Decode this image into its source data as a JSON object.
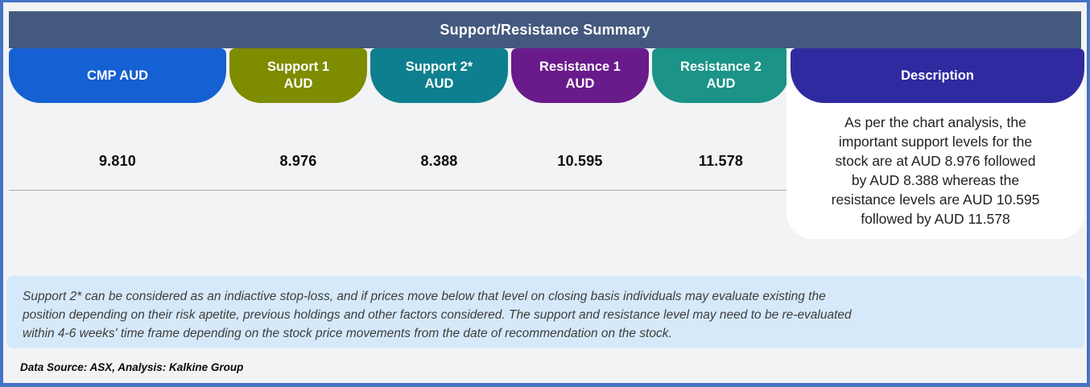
{
  "title": "Support/Resistance Summary",
  "columns": [
    {
      "label": "CMP AUD",
      "value": "9.810",
      "color": "#1560D2"
    },
    {
      "label": "Support 1\nAUD",
      "value": "8.976",
      "color": "#7E8C00"
    },
    {
      "label": "Support 2*\nAUD",
      "value": "8.388",
      "color": "#0E7F8E"
    },
    {
      "label": "Resistance 1\nAUD",
      "value": "10.595",
      "color": "#6A1B8B"
    },
    {
      "label": "Resistance 2\nAUD",
      "value": "11.578",
      "color": "#1B9386"
    }
  ],
  "description": {
    "header": "Description",
    "header_color": "#302AA0",
    "lines": [
      "As per the chart analysis, the",
      "important support levels for the",
      "stock are at AUD 8.976 followed",
      "by AUD 8.388 whereas the",
      "resistance levels are AUD 10.595",
      "followed by AUD 11.578"
    ]
  },
  "note": {
    "lines": [
      "Support 2* can be considered as an indiactive stop-loss, and if prices move below that level on closing basis individuals may evaluate existing the",
      "position depending on their risk apetite, previous holdings and other factors considered. The support and resistance level may need to be re-evaluated",
      "within 4-6 weeks' time frame depending on the stock price movements from  the date of recommendation on the stock."
    ]
  },
  "footer": "Data Source: ASX, Analysis: Kalkine Group",
  "colors": {
    "frame_border": "#4573C4",
    "header_bar": "#43597E",
    "page_background": "#F2F3F5",
    "note_background": "#D6E9FA",
    "description_box_background": "#FFFFFF",
    "values_rule": "#ABABAD"
  },
  "chart_data": {
    "type": "table",
    "title": "Support/Resistance Summary",
    "columns": [
      "CMP AUD",
      "Support 1 AUD",
      "Support 2* AUD",
      "Resistance 1 AUD",
      "Resistance 2 AUD"
    ],
    "values": [
      9.81,
      8.976,
      8.388,
      10.595,
      11.578
    ]
  }
}
